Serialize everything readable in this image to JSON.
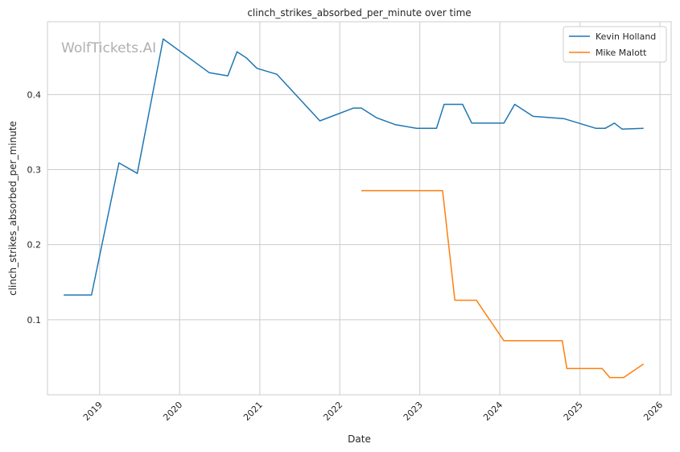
{
  "chart_data": {
    "type": "line",
    "title": "clinch_strikes_absorbed_per_minute over time",
    "xlabel": "Date",
    "ylabel": "clinch_strikes_absorbed_per_minute",
    "watermark": "WolfTickets.AI",
    "x_ticks": [
      "2019",
      "2020",
      "2021",
      "2022",
      "2023",
      "2024",
      "2025",
      "2026"
    ],
    "y_ticks": [
      0.1,
      0.2,
      0.3,
      0.4
    ],
    "xlim": [
      "2018-05-08",
      "2026-02-21"
    ],
    "ylim": [
      0.0,
      0.497
    ],
    "grid": true,
    "legend_position": "top-right",
    "series": [
      {
        "name": "Kevin Holland",
        "color": "#1f77b4",
        "x": [
          "2018-07-21",
          "2018-11-25",
          "2019-03-30",
          "2019-06-22",
          "2019-10-18",
          "2020-05-16",
          "2020-08-08",
          "2020-09-19",
          "2020-10-31",
          "2020-12-19",
          "2021-03-20",
          "2021-10-02",
          "2022-03-05",
          "2022-04-09",
          "2022-06-18",
          "2022-09-10",
          "2022-12-17",
          "2023-03-18",
          "2023-04-22",
          "2023-07-15",
          "2023-08-26",
          "2024-01-20",
          "2024-03-09",
          "2024-06-01",
          "2024-10-19",
          "2025-03-15",
          "2025-04-26",
          "2025-06-07",
          "2025-07-12",
          "2025-10-18"
        ],
        "y": [
          0.133,
          0.133,
          0.309,
          0.295,
          0.474,
          0.429,
          0.425,
          0.457,
          0.449,
          0.435,
          0.427,
          0.365,
          0.382,
          0.382,
          0.369,
          0.36,
          0.355,
          0.355,
          0.387,
          0.387,
          0.362,
          0.362,
          0.387,
          0.371,
          0.368,
          0.355,
          0.355,
          0.362,
          0.354,
          0.355
        ]
      },
      {
        "name": "Mike Malott",
        "color": "#ff7f0e",
        "x": [
          "2022-04-09",
          "2023-04-15",
          "2023-06-10",
          "2023-09-16",
          "2024-01-20",
          "2024-10-12",
          "2024-11-02",
          "2025-04-12",
          "2025-05-17",
          "2025-07-19",
          "2025-10-18"
        ],
        "y": [
          0.272,
          0.272,
          0.126,
          0.126,
          0.072,
          0.072,
          0.035,
          0.035,
          0.023,
          0.023,
          0.041
        ]
      }
    ]
  }
}
